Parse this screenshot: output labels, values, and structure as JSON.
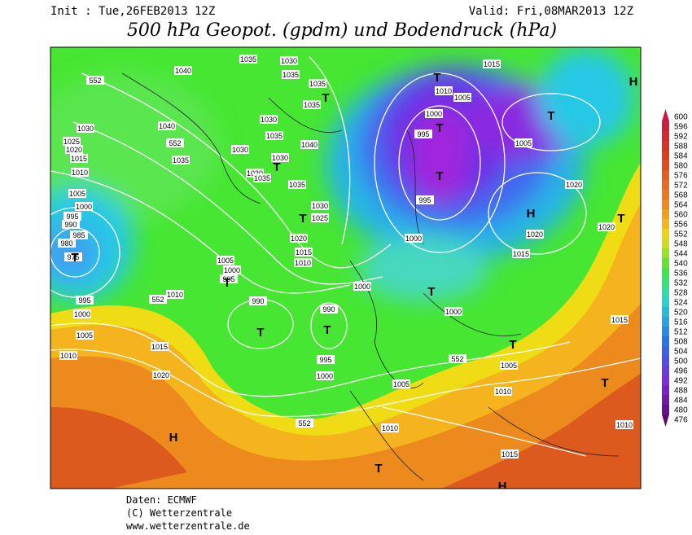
{
  "header": {
    "init": "Init : Tue,26FEB2013 12Z",
    "valid": "Valid: Fri,08MAR2013 12Z",
    "title": "500 hPa Geopot. (gpdm) und Bodendruck (hPa)"
  },
  "map": {
    "isobar_labels": [
      "1040",
      "1035",
      "1030",
      "1035",
      "1035",
      "1035",
      "1030",
      "1040",
      "552",
      "1035",
      "1030",
      "1035",
      "1030",
      "1040",
      "1030",
      "1035",
      "1035",
      "1030",
      "1025",
      "1020",
      "1015",
      "1010",
      "552",
      "1030",
      "1025",
      "1020",
      "1015",
      "1010",
      "1005",
      "1000",
      "995",
      "990",
      "985",
      "980",
      "975",
      "1005",
      "1000",
      "995",
      "1010",
      "552",
      "995",
      "1000",
      "1005",
      "1010",
      "1015",
      "1020",
      "990",
      "990",
      "995",
      "1000",
      "1000",
      "1000",
      "1000",
      "995",
      "995",
      "1010",
      "1005",
      "1015",
      "1005",
      "1020",
      "1020",
      "1020",
      "1015",
      "1000",
      "552",
      "1005",
      "1010",
      "1005",
      "552",
      "1010",
      "1015",
      "1015",
      "1010"
    ],
    "pressure_centers": [
      "H",
      "T",
      "T",
      "T",
      "T",
      "T",
      "T",
      "T",
      "T",
      "T",
      "T",
      "H",
      "T",
      "T",
      "T",
      "T",
      "T",
      "H",
      "H",
      "T"
    ]
  },
  "legend": {
    "values": [
      600,
      596,
      592,
      588,
      584,
      580,
      576,
      572,
      568,
      564,
      560,
      556,
      552,
      548,
      544,
      540,
      536,
      532,
      528,
      524,
      520,
      516,
      512,
      508,
      504,
      500,
      496,
      492,
      488,
      484,
      480,
      476
    ]
  },
  "footer": {
    "source": "Daten: ECMWF",
    "copyright": "(C) Wetterzentrale",
    "url": "www.wetterzentrale.de"
  }
}
